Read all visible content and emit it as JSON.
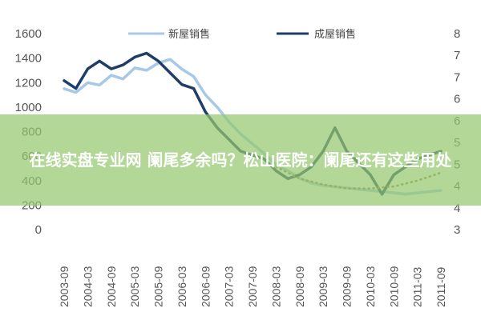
{
  "banner": {
    "title": "在线实盘专业网 阑尾多余吗？松山医院：阑尾还有这些用处"
  },
  "chart_data": {
    "type": "line",
    "legend": [
      "新屋销售",
      "成屋销售"
    ],
    "legend_position": "top",
    "left_axis": {
      "ylim": [
        0,
        1600
      ],
      "ticks": [
        "0",
        "200",
        "400",
        "600",
        "800",
        "1000",
        "1200",
        "1400",
        "1600"
      ]
    },
    "right_axis": {
      "ylim": [
        3,
        8
      ],
      "ticks": [
        "3",
        "4",
        "4",
        "5",
        "5",
        "6",
        "6",
        "7",
        "7",
        "8"
      ]
    },
    "x_ticks": [
      "2003-09",
      "2004-03",
      "2004-09",
      "2005-03",
      "2005-09",
      "2006-03",
      "2006-09",
      "2007-03",
      "2007-09",
      "2008-03",
      "2008-09",
      "2009-03",
      "2009-09",
      "2010-03",
      "2010-09",
      "2011-03",
      "2011-09"
    ],
    "grid": false,
    "series": [
      {
        "name": "新屋销售",
        "axis": "left",
        "color": "#a8c8e8",
        "x": [
          0,
          0.5,
          1,
          1.5,
          2,
          2.5,
          3,
          3.5,
          4,
          4.5,
          5,
          5.5,
          6,
          6.5,
          7,
          7.5,
          8,
          8.5,
          9,
          9.5,
          10,
          10.5,
          11,
          11.5,
          12,
          12.5,
          13,
          13.5,
          14,
          14.5,
          15,
          15.5,
          16
        ],
        "values": [
          1150,
          1120,
          1200,
          1180,
          1260,
          1230,
          1320,
          1300,
          1360,
          1390,
          1310,
          1250,
          1100,
          1000,
          880,
          780,
          700,
          620,
          530,
          480,
          420,
          380,
          360,
          350,
          340,
          330,
          320,
          310,
          300,
          290,
          300,
          310,
          320
        ]
      },
      {
        "name": "成屋销售",
        "axis": "right",
        "color": "#1f3d66",
        "x": [
          0,
          0.5,
          1,
          1.5,
          2,
          2.5,
          3,
          3.5,
          4,
          4.5,
          5,
          5.5,
          6,
          6.5,
          7,
          7.5,
          8,
          8.5,
          9,
          9.5,
          10,
          10.5,
          11,
          11.5,
          12,
          12.5,
          13,
          13.5,
          14,
          14.5,
          15,
          15.5,
          16
        ],
        "values": [
          6.8,
          6.6,
          7.1,
          7.3,
          7.1,
          7.2,
          7.4,
          7.5,
          7.3,
          7.0,
          6.7,
          6.6,
          6.0,
          5.6,
          5.3,
          5.0,
          4.9,
          4.8,
          4.5,
          4.3,
          4.4,
          4.6,
          5.0,
          5.6,
          5.0,
          4.7,
          4.4,
          3.9,
          4.4,
          4.6,
          4.8,
          4.9,
          5.0
        ]
      },
      {
        "name": "",
        "axis": "right",
        "style": "dotted",
        "color": "#9a7a40",
        "x": [
          9,
          10,
          11,
          12,
          13,
          14,
          15,
          16
        ],
        "values": [
          4.6,
          4.3,
          4.15,
          4.05,
          4.05,
          4.1,
          4.25,
          4.45
        ]
      }
    ]
  }
}
